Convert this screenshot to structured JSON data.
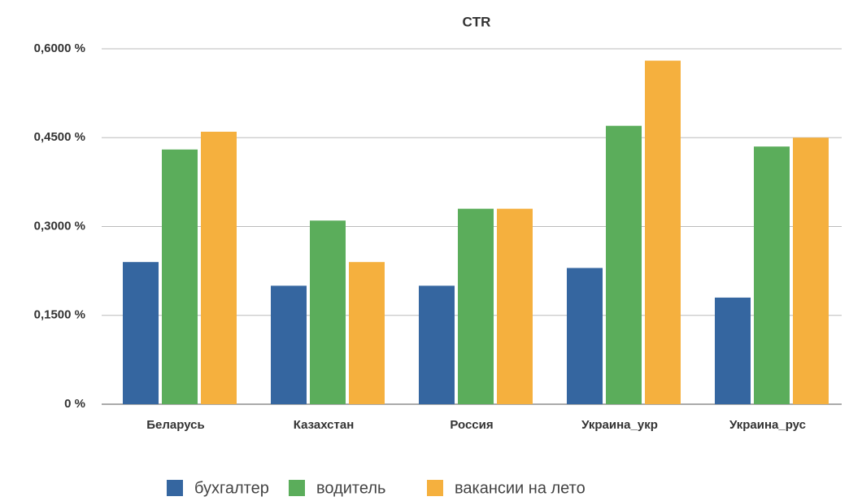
{
  "chart_data": {
    "type": "bar",
    "title": "CTR",
    "categories": [
      "Беларусь",
      "Казахстан",
      "Россия",
      "Украина_укр",
      "Украина_рус"
    ],
    "series": [
      {
        "name": "бухгалтер",
        "color": "#3566a0",
        "values": [
          0.24,
          0.2,
          0.2,
          0.23,
          0.18
        ]
      },
      {
        "name": "водитель",
        "color": "#5bad5b",
        "values": [
          0.43,
          0.31,
          0.33,
          0.47,
          0.435
        ]
      },
      {
        "name": "вакансии на лето",
        "color": "#f5b03e",
        "values": [
          0.46,
          0.24,
          0.33,
          0.58,
          0.45
        ]
      }
    ],
    "ylim": [
      0,
      0.6
    ],
    "yticks": [
      {
        "value": 0,
        "label": "0 %"
      },
      {
        "value": 0.15,
        "label": "0,1500 %"
      },
      {
        "value": 0.3,
        "label": "0,3000 %"
      },
      {
        "value": 0.45,
        "label": "0,4500 %"
      },
      {
        "value": 0.6,
        "label": "0,6000 %"
      }
    ],
    "grid": true,
    "legend": "bottom"
  }
}
